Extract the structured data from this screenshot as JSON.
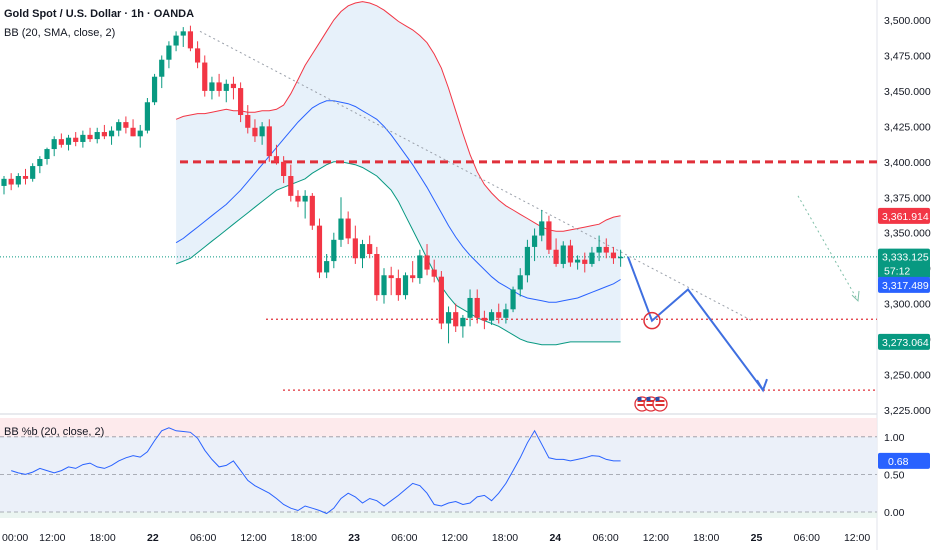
{
  "header": {
    "symbol_title": "Gold Spot / U.S. Dollar · 1h · OANDA",
    "indicator_label": "BB (20, SMA, close, 2)"
  },
  "oscillator": {
    "label": "BB %b (20, close, 2)",
    "value_badge": "0.68"
  },
  "price_badges": {
    "upper_band": "3,361.914",
    "last_price": "3,333.125",
    "countdown": "57:12",
    "basis": "3,317.489",
    "lower_band": "3,273.064"
  },
  "colors": {
    "up": "#089981",
    "down": "#f23645",
    "upper_band": "#f23645",
    "basis": "#2962ff",
    "lower_band": "#089981",
    "band_fill": "#e3eef9",
    "projection": "#3f6fe0",
    "resistance": "#e0303a",
    "osc_line": "#2962ff"
  },
  "icons": [
    "us-flag-event-icon",
    "us-flag-event-icon",
    "us-flag-event-icon"
  ],
  "chart_data": [
    {
      "type": "candlestick",
      "price_axis": {
        "ticks": [
          "3,500.000",
          "3,475.000",
          "3,450.000",
          "3,425.000",
          "3,400.000",
          "3,375.000",
          "3,350.000",
          "3,325.000",
          "3,300.000",
          "3,275.000",
          "3,250.000",
          "3,225.000"
        ],
        "range": [
          3225,
          3500
        ]
      },
      "time_axis": {
        "ticks": [
          "00:00",
          "12:00",
          "18:00",
          "22",
          "06:00",
          "12:00",
          "18:00",
          "23",
          "06:00",
          "12:00",
          "18:00",
          "24",
          "06:00",
          "12:00",
          "18:00",
          "25",
          "06:00",
          "12:00"
        ]
      },
      "candles": [
        [
          3383,
          3390,
          3377,
          3388
        ],
        [
          3388,
          3392,
          3380,
          3384
        ],
        [
          3384,
          3392,
          3382,
          3390
        ],
        [
          3390,
          3395,
          3384,
          3388
        ],
        [
          3388,
          3399,
          3386,
          3397
        ],
        [
          3397,
          3404,
          3392,
          3402
        ],
        [
          3402,
          3410,
          3398,
          3409
        ],
        [
          3409,
          3418,
          3404,
          3416
        ],
        [
          3416,
          3420,
          3410,
          3412
        ],
        [
          3412,
          3419,
          3408,
          3417
        ],
        [
          3417,
          3421,
          3411,
          3414
        ],
        [
          3414,
          3422,
          3410,
          3419
        ],
        [
          3419,
          3424,
          3414,
          3416
        ],
        [
          3416,
          3424,
          3413,
          3421
        ],
        [
          3421,
          3426,
          3416,
          3418
        ],
        [
          3418,
          3425,
          3412,
          3422
        ],
        [
          3422,
          3430,
          3418,
          3428
        ],
        [
          3428,
          3432,
          3420,
          3424
        ],
        [
          3424,
          3430,
          3418,
          3418
        ],
        [
          3418,
          3426,
          3410,
          3422
        ],
        [
          3422,
          3445,
          3420,
          3442
        ],
        [
          3442,
          3462,
          3440,
          3460
        ],
        [
          3460,
          3475,
          3452,
          3472
        ],
        [
          3472,
          3485,
          3466,
          3482
        ],
        [
          3482,
          3492,
          3478,
          3489
        ],
        [
          3489,
          3495,
          3481,
          3492
        ],
        [
          3492,
          3496,
          3478,
          3480
        ],
        [
          3480,
          3485,
          3466,
          3470
        ],
        [
          3470,
          3475,
          3446,
          3450
        ],
        [
          3450,
          3460,
          3444,
          3456
        ],
        [
          3456,
          3462,
          3446,
          3450
        ],
        [
          3450,
          3458,
          3442,
          3455
        ],
        [
          3455,
          3460,
          3444,
          3452
        ],
        [
          3452,
          3456,
          3428,
          3433
        ],
        [
          3433,
          3440,
          3420,
          3424
        ],
        [
          3424,
          3430,
          3414,
          3418
        ],
        [
          3418,
          3428,
          3412,
          3425
        ],
        [
          3425,
          3430,
          3400,
          3404
        ],
        [
          3404,
          3412,
          3398,
          3400
        ],
        [
          3400,
          3404,
          3385,
          3390
        ],
        [
          3390,
          3398,
          3372,
          3376
        ],
        [
          3376,
          3380,
          3368,
          3372
        ],
        [
          3372,
          3380,
          3360,
          3376
        ],
        [
          3376,
          3378,
          3352,
          3355
        ],
        [
          3355,
          3360,
          3318,
          3322
        ],
        [
          3322,
          3335,
          3318,
          3330
        ],
        [
          3330,
          3350,
          3325,
          3345
        ],
        [
          3345,
          3375,
          3340,
          3360
        ],
        [
          3360,
          3365,
          3342,
          3346
        ],
        [
          3346,
          3355,
          3328,
          3332
        ],
        [
          3332,
          3345,
          3325,
          3342
        ],
        [
          3342,
          3348,
          3332,
          3335
        ],
        [
          3335,
          3340,
          3302,
          3306
        ],
        [
          3306,
          3325,
          3300,
          3320
        ],
        [
          3320,
          3326,
          3306,
          3318
        ],
        [
          3318,
          3324,
          3302,
          3306
        ],
        [
          3306,
          3322,
          3303,
          3320
        ],
        [
          3320,
          3330,
          3315,
          3318
        ],
        [
          3318,
          3338,
          3314,
          3334
        ],
        [
          3334,
          3342,
          3320,
          3324
        ],
        [
          3324,
          3331,
          3315,
          3319
        ],
        [
          3319,
          3323,
          3282,
          3286
        ],
        [
          3286,
          3298,
          3272,
          3294
        ],
        [
          3294,
          3300,
          3280,
          3284
        ],
        [
          3284,
          3292,
          3276,
          3290
        ],
        [
          3290,
          3310,
          3284,
          3304
        ],
        [
          3304,
          3310,
          3286,
          3290
        ],
        [
          3290,
          3295,
          3282,
          3288
        ],
        [
          3288,
          3296,
          3285,
          3294
        ],
        [
          3294,
          3300,
          3286,
          3290
        ],
        [
          3290,
          3300,
          3286,
          3296
        ],
        [
          3296,
          3312,
          3294,
          3310
        ],
        [
          3310,
          3325,
          3305,
          3320
        ],
        [
          3320,
          3345,
          3315,
          3340
        ],
        [
          3340,
          3353,
          3330,
          3348
        ],
        [
          3348,
          3366,
          3344,
          3358
        ],
        [
          3358,
          3362,
          3335,
          3338
        ],
        [
          3338,
          3346,
          3326,
          3328
        ],
        [
          3328,
          3344,
          3325,
          3341
        ],
        [
          3341,
          3345,
          3326,
          3329
        ],
        [
          3329,
          3334,
          3324,
          3331
        ],
        [
          3331,
          3336,
          3322,
          3328
        ],
        [
          3328,
          3340,
          3326,
          3336
        ],
        [
          3336,
          3348,
          3330,
          3340
        ],
        [
          3340,
          3346,
          3332,
          3336
        ],
        [
          3336,
          3340,
          3328,
          3332
        ],
        [
          3332,
          3338,
          3326,
          3333
        ]
      ],
      "bands": {
        "upper": [
          3430,
          3432,
          3433,
          3434,
          3434,
          3435,
          3436,
          3437,
          3436,
          3436,
          3435,
          3435,
          3436,
          3436,
          3437,
          3440,
          3448,
          3458,
          3468,
          3476,
          3484,
          3492,
          3500,
          3506,
          3510,
          3512,
          3513,
          3512,
          3510,
          3507,
          3503,
          3499,
          3496,
          3493,
          3489,
          3484,
          3476,
          3466,
          3452,
          3436,
          3420,
          3405,
          3393,
          3384,
          3378,
          3373,
          3369,
          3366,
          3363,
          3360,
          3357,
          3354,
          3352,
          3351,
          3351,
          3352,
          3353,
          3354,
          3355,
          3356,
          3359,
          3361,
          3362
        ],
        "basis": [
          3343,
          3346,
          3350,
          3354,
          3358,
          3362,
          3366,
          3370,
          3375,
          3380,
          3386,
          3392,
          3398,
          3404,
          3410,
          3416,
          3422,
          3428,
          3433,
          3438,
          3441,
          3443,
          3443,
          3442,
          3441,
          3439,
          3436,
          3433,
          3430,
          3425,
          3419,
          3412,
          3405,
          3398,
          3390,
          3382,
          3373,
          3364,
          3355,
          3347,
          3340,
          3334,
          3329,
          3324,
          3319,
          3315,
          3312,
          3309,
          3306,
          3304,
          3303,
          3302,
          3301,
          3301,
          3302,
          3303,
          3304,
          3306,
          3308,
          3310,
          3312,
          3314,
          3317
        ],
        "lower": [
          3328,
          3330,
          3332,
          3336,
          3340,
          3344,
          3348,
          3352,
          3356,
          3360,
          3364,
          3368,
          3372,
          3376,
          3380,
          3382,
          3384,
          3386,
          3388,
          3392,
          3395,
          3398,
          3400,
          3400,
          3399,
          3398,
          3396,
          3393,
          3390,
          3385,
          3380,
          3372,
          3362,
          3352,
          3342,
          3332,
          3322,
          3312,
          3305,
          3299,
          3296,
          3293,
          3290,
          3288,
          3286,
          3284,
          3281,
          3278,
          3275,
          3273,
          3272,
          3271,
          3271,
          3271,
          3272,
          3273,
          3273,
          3273,
          3273,
          3273,
          3273,
          3273,
          3273
        ]
      },
      "levels": {
        "resistance": 3400,
        "support": 3289,
        "target": 3239
      },
      "projection_path": [
        3333,
        3288,
        3310,
        3239
      ]
    },
    {
      "type": "line",
      "title": "BB %b (20, close, 2)",
      "y_ticks": [
        "1.00",
        "0.50",
        "0.00"
      ],
      "ylim": [
        -0.08,
        1.25
      ],
      "series": [
        {
          "values": [
            0.55,
            0.52,
            0.5,
            0.53,
            0.58,
            0.55,
            0.52,
            0.55,
            0.6,
            0.58,
            0.63,
            0.65,
            0.6,
            0.58,
            0.62,
            0.68,
            0.72,
            0.75,
            0.73,
            0.8,
            0.95,
            1.08,
            1.12,
            1.08,
            1.07,
            1.06,
            0.98,
            0.82,
            0.7,
            0.6,
            0.62,
            0.68,
            0.55,
            0.42,
            0.35,
            0.3,
            0.25,
            0.18,
            0.1,
            0.05,
            0.02,
            0.08,
            0.05,
            0.02,
            -0.02,
            0.05,
            0.18,
            0.25,
            0.2,
            0.12,
            0.18,
            0.15,
            0.08,
            0.15,
            0.22,
            0.3,
            0.38,
            0.35,
            0.25,
            0.1,
            0.08,
            0.12,
            0.14,
            0.1,
            0.12,
            0.2,
            0.22,
            0.15,
            0.25,
            0.38,
            0.55,
            0.72,
            0.92,
            1.08,
            0.9,
            0.72,
            0.7,
            0.7,
            0.68,
            0.7,
            0.72,
            0.75,
            0.74,
            0.7,
            0.68,
            0.68
          ]
        }
      ]
    }
  ]
}
